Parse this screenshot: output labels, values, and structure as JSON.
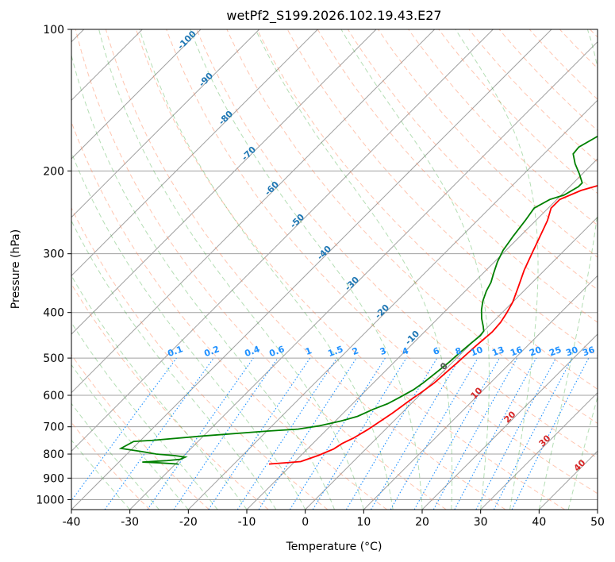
{
  "chart_data": {
    "type": "line",
    "title": "wetPf2_S199.2026.102.19.43.E27",
    "xlabel": "Temperature (°C)",
    "ylabel": "Pressure (hPa)",
    "xlim": [
      -40,
      50
    ],
    "ylim": [
      1050,
      100
    ],
    "x_ticks": [
      -40,
      -30,
      -20,
      -10,
      0,
      10,
      20,
      30,
      40,
      50
    ],
    "y_ticks": [
      100,
      200,
      300,
      400,
      500,
      600,
      700,
      800,
      900,
      1000
    ],
    "grid": true,
    "series": [
      {
        "name": "Temperature",
        "color": "#ff0000",
        "points": [
          [
            -14,
            840
          ],
          [
            -9,
            830
          ],
          [
            -7,
            805
          ],
          [
            -5.5,
            780
          ],
          [
            -5,
            760
          ],
          [
            -4,
            740
          ],
          [
            -3,
            710
          ],
          [
            -2.5,
            690
          ],
          [
            -1.6,
            655
          ],
          [
            -1.2,
            635
          ],
          [
            -0.8,
            615
          ],
          [
            -0.2,
            592
          ],
          [
            0.4,
            565
          ],
          [
            0.7,
            530
          ],
          [
            0.9,
            510
          ],
          [
            1,
            495
          ],
          [
            1.2,
            470
          ],
          [
            1.6,
            440
          ],
          [
            1.4,
            420
          ],
          [
            0.8,
            400
          ],
          [
            0,
            380
          ],
          [
            -1.5,
            355
          ],
          [
            -3.5,
            325
          ],
          [
            -5,
            300
          ],
          [
            -6.6,
            275
          ],
          [
            -8,
            255
          ],
          [
            -9.5,
            240
          ],
          [
            -9.5,
            230
          ],
          [
            -7.4,
            220
          ],
          [
            -3.3,
            210
          ],
          [
            0.5,
            203
          ],
          [
            4,
            196
          ],
          [
            7.5,
            188
          ],
          [
            9.7,
            180
          ],
          [
            11,
            170
          ],
          [
            12,
            160
          ],
          [
            13.5,
            148
          ],
          [
            16.5,
            136
          ],
          [
            18.2,
            128
          ],
          [
            19.5,
            122
          ],
          [
            20.8,
            115
          ],
          [
            21.8,
            108
          ],
          [
            23.2,
            102
          ],
          [
            23.8,
            100
          ]
        ]
      },
      {
        "name": "Dewpoint",
        "color": "#008000",
        "points": [
          [
            -29.5,
            840
          ],
          [
            -33,
            835
          ],
          [
            -36,
            832
          ],
          [
            -34,
            829
          ],
          [
            -32,
            826
          ],
          [
            -30,
            821
          ],
          [
            -29.5,
            812
          ],
          [
            -31.5,
            806
          ],
          [
            -35,
            800
          ],
          [
            -38,
            790
          ],
          [
            -42,
            778
          ],
          [
            -41,
            752
          ],
          [
            -38,
            748
          ],
          [
            -30,
            732
          ],
          [
            -20,
            715
          ],
          [
            -15,
            708
          ],
          [
            -12,
            697
          ],
          [
            -9,
            680
          ],
          [
            -7,
            665
          ],
          [
            -5.5,
            642
          ],
          [
            -4,
            625
          ],
          [
            -3,
            605
          ],
          [
            -2,
            584
          ],
          [
            -1.5,
            565
          ],
          [
            -1,
            535
          ],
          [
            -0.6,
            510
          ],
          [
            -0.4,
            488
          ],
          [
            -0.1,
            465
          ],
          [
            0.2,
            448
          ],
          [
            0,
            438
          ],
          [
            -0.9,
            428
          ],
          [
            -2.5,
            412
          ],
          [
            -4,
            395
          ],
          [
            -5.3,
            378
          ],
          [
            -6.4,
            360
          ],
          [
            -7.1,
            345
          ],
          [
            -8.2,
            330
          ],
          [
            -9.5,
            312
          ],
          [
            -10.5,
            295
          ],
          [
            -11.2,
            275
          ],
          [
            -11.8,
            255
          ],
          [
            -12.4,
            240
          ],
          [
            -11.2,
            230
          ],
          [
            -9.5,
            225
          ],
          [
            -8.5,
            216
          ],
          [
            -8.5,
            212
          ],
          [
            -10.5,
            203
          ],
          [
            -13,
            193
          ],
          [
            -15,
            184
          ],
          [
            -15.2,
            178
          ],
          [
            -14,
            170
          ],
          [
            -12.6,
            160
          ],
          [
            -11.2,
            150
          ],
          [
            -9.4,
            140
          ],
          [
            -7.8,
            130
          ],
          [
            -6,
            120
          ],
          [
            -4.7,
            112
          ],
          [
            -3.8,
            105
          ],
          [
            -3.2,
            100
          ]
        ]
      }
    ],
    "isotherm_labels": [
      "-100",
      "-90",
      "-80",
      "-70",
      "-60",
      "-50",
      "-40",
      "-30",
      "-20",
      "-10"
    ],
    "mixing_ratio_labels": [
      "0.1",
      "0.2",
      "0.4",
      "0.6",
      "1",
      "1.5",
      "2",
      "3",
      "4",
      "6",
      "8",
      "10",
      "13",
      "16",
      "20",
      "25",
      "30",
      "36"
    ],
    "moist_adiabat_labels": [
      "0",
      "10",
      "20",
      "30",
      "40"
    ],
    "colors": {
      "temperature": "#ff0000",
      "dewpoint": "#008000",
      "isotherm_label": "#1f77b4",
      "mixing_ratio": "#1e90ff",
      "moist_adiabat_label": "#d62728",
      "moist_adiabat_zero": "#555555",
      "dry_adiabat": "#ff7f50",
      "moist_adiabat": "#2ca02c",
      "grid": "#a0a0a0"
    }
  }
}
